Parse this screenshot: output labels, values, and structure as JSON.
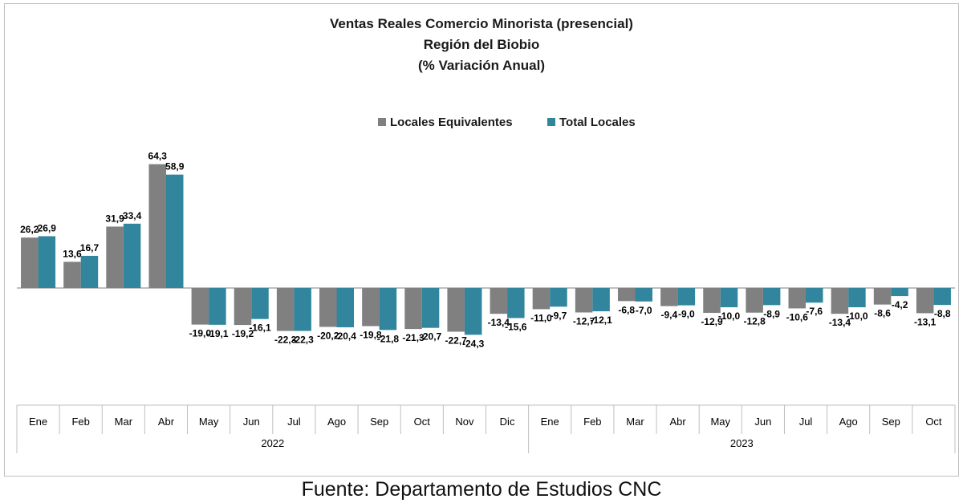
{
  "colors": {
    "series1": "#808080",
    "series2": "#31859c",
    "axis": "#7f7f7f",
    "text": "#000000"
  },
  "source": "Fuente: Departamento de Estudios CNC",
  "chart_data": {
    "type": "bar",
    "title": [
      "Ventas Reales Comercio Minorista (presencial)",
      "Región del Biobio",
      "(% Variación Anual)"
    ],
    "xlabel": "",
    "ylabel": "",
    "legend_position": "top-center",
    "grid": false,
    "ylim": [
      -30,
      70
    ],
    "categories": [
      "Ene",
      "Feb",
      "Mar",
      "Abr",
      "May",
      "Jun",
      "Jul",
      "Ago",
      "Sep",
      "Oct",
      "Nov",
      "Dic",
      "Ene",
      "Feb",
      "Mar",
      "Abr",
      "May",
      "Jun",
      "Jul",
      "Ago",
      "Sep",
      "Oct"
    ],
    "year_groups": [
      {
        "label": "2022",
        "count": 12
      },
      {
        "label": "2023",
        "count": 10
      }
    ],
    "series": [
      {
        "name": "Locales Equivalentes",
        "values": [
          26.2,
          13.6,
          31.9,
          64.3,
          -19.0,
          -19.2,
          -22.3,
          -20.2,
          -19.8,
          -21.3,
          -22.7,
          -13.4,
          -11.0,
          -12.7,
          -6.8,
          -9.4,
          -12.9,
          -12.8,
          -10.6,
          -13.4,
          -8.6,
          -13.1
        ],
        "labels": [
          "26,2",
          "13,6",
          "31,9",
          "64,3",
          "-19,0",
          "-19,2",
          "-22,3",
          "-20,2",
          "-19,8",
          "-21,3",
          "-22,7",
          "-13,4",
          "-11,0",
          "-12,7",
          "-6,8",
          "-9,4",
          "-12,9",
          "-12,8",
          "-10,6",
          "-13,4",
          "-8,6",
          "-13,1"
        ]
      },
      {
        "name": "Total Locales",
        "values": [
          26.9,
          16.7,
          33.4,
          58.9,
          -19.1,
          -16.1,
          -22.3,
          -20.4,
          -21.8,
          -20.7,
          -24.3,
          -15.6,
          -9.7,
          -12.1,
          -7.0,
          -9.0,
          -10.0,
          -8.9,
          -7.6,
          -10.0,
          -4.2,
          -8.8
        ],
        "labels": [
          "26,9",
          "16,7",
          "33,4",
          "58,9",
          "-19,1",
          "-16,1",
          "-22,3",
          "-20,4",
          "-21,8",
          "-20,7",
          "-24,3",
          "-15,6",
          "-9,7",
          "-12,1",
          "-7,0",
          "-9,0",
          "-10,0",
          "-8,9",
          "-7,6",
          "-10,0",
          "-4,2",
          "-8,8"
        ]
      }
    ]
  }
}
